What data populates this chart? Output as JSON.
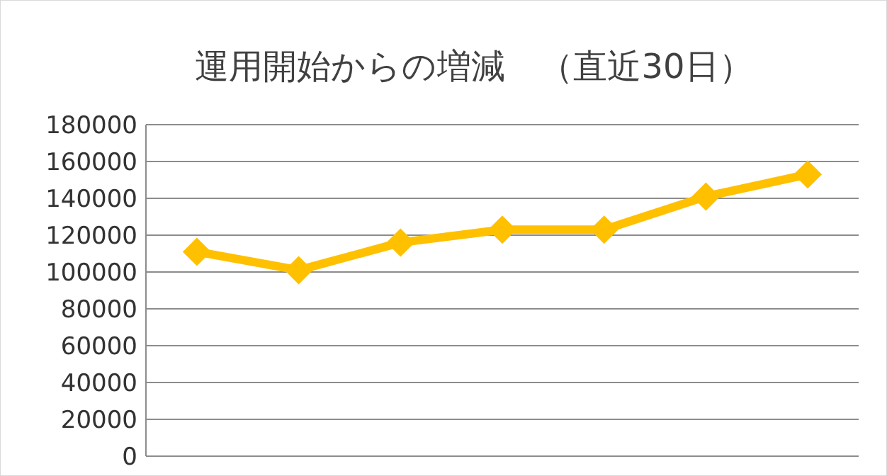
{
  "chart_data": {
    "type": "line",
    "title": "運用開始からの増減　（直近30日）",
    "categories": [
      null,
      null,
      null,
      null,
      null,
      null,
      null
    ],
    "series": [
      {
        "color": "#ffc000",
        "values": [
          111000,
          101000,
          116000,
          123000,
          123000,
          141000,
          153000
        ]
      }
    ],
    "ylim": [
      0,
      180000
    ],
    "yticks": [
      0,
      20000,
      40000,
      60000,
      80000,
      100000,
      120000,
      140000,
      160000,
      180000
    ],
    "grid": "y",
    "marker": "diamond",
    "line_style": "solid"
  }
}
